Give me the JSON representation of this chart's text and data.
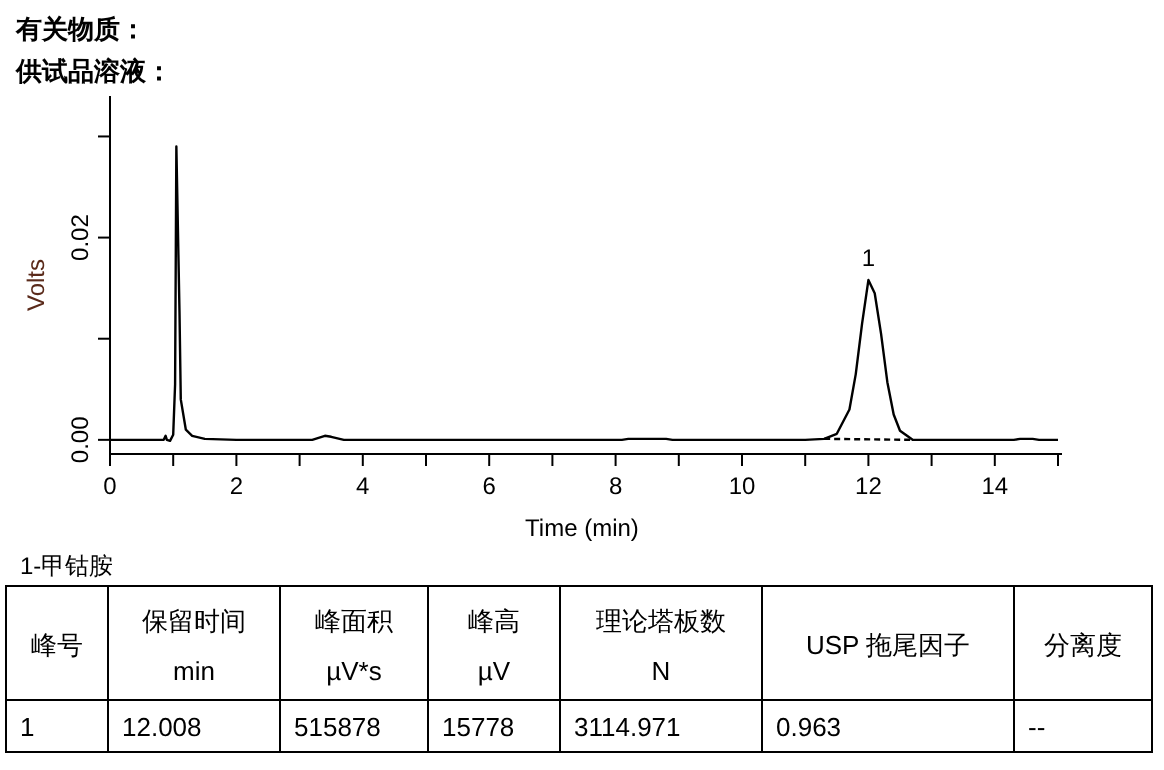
{
  "chart_data": [
    {
      "type": "line",
      "title": "有关物质：",
      "subtitle": "供试品溶液：",
      "xlabel": "Time (min)",
      "ylabel": "Volts",
      "xlim": [
        0,
        15
      ],
      "ylim": [
        -0.0014,
        0.034
      ],
      "xticks": [
        0,
        {
          "value": 1,
          "label": null
        },
        2,
        {
          "value": 3,
          "label": null
        },
        4,
        {
          "value": 5,
          "label": null
        },
        6,
        {
          "value": 7,
          "label": null
        },
        8,
        {
          "value": 9,
          "label": null
        },
        10,
        {
          "value": 11,
          "label": null
        },
        12,
        {
          "value": 13,
          "label": null
        },
        14,
        {
          "value": 15,
          "label": null
        }
      ],
      "yticks": [
        {
          "value": 0,
          "label": "0.00"
        },
        {
          "value": 0.01,
          "label": null
        },
        0.02,
        {
          "value": 0.03,
          "label": null
        }
      ],
      "grid": false,
      "series": [
        {
          "color": "#000000",
          "line_style": "solid",
          "x": [
            0,
            0.85,
            0.88,
            0.9,
            0.95,
            1.0,
            1.03,
            1.05,
            1.1,
            1.12,
            1.2,
            1.3,
            1.5,
            2.0,
            3.2,
            3.4,
            3.5,
            3.7,
            8.1,
            8.2,
            8.8,
            8.9,
            11.0,
            11.3,
            11.5,
            11.7,
            11.8,
            11.9,
            12.0,
            12.1,
            12.2,
            12.3,
            12.4,
            12.5,
            12.7,
            14.3,
            14.4,
            14.6,
            14.7,
            15.0
          ],
          "values": [
            0,
            0,
            0.0004,
            0,
            -0.0001,
            0.0005,
            0.0055,
            0.029,
            0.0125,
            0.004,
            0.001,
            0.0004,
            0.0001,
            0,
            0,
            0.0004,
            0.0003,
            0,
            0,
            0.0001,
            0.0001,
            0,
            0,
            0.0001,
            0.0006,
            0.003,
            0.0065,
            0.0115,
            0.0158,
            0.0145,
            0.0105,
            0.0057,
            0.0025,
            0.0009,
            0,
            0,
            0.0001,
            0.0001,
            0,
            0
          ]
        },
        {
          "color": "#000000",
          "line_style": "dashed",
          "x": [
            11.3,
            12.7
          ],
          "values": [
            0.0001,
            0
          ]
        }
      ],
      "annotations": [
        {
          "text": "1",
          "x": 12.0,
          "y": 0.0158
        }
      ]
    },
    {
      "type": "other",
      "title": "1-甲钴胺",
      "annotations": [
        "峰号",
        "保留时间\nmin",
        "峰面积\nµV*s",
        "峰高\nµV",
        "理论塔板数\nN",
        "USP 拖尾因子",
        "分离度",
        "1",
        "12.008",
        "515878",
        "15778",
        "3114.971",
        "0.963",
        "--"
      ]
    }
  ]
}
